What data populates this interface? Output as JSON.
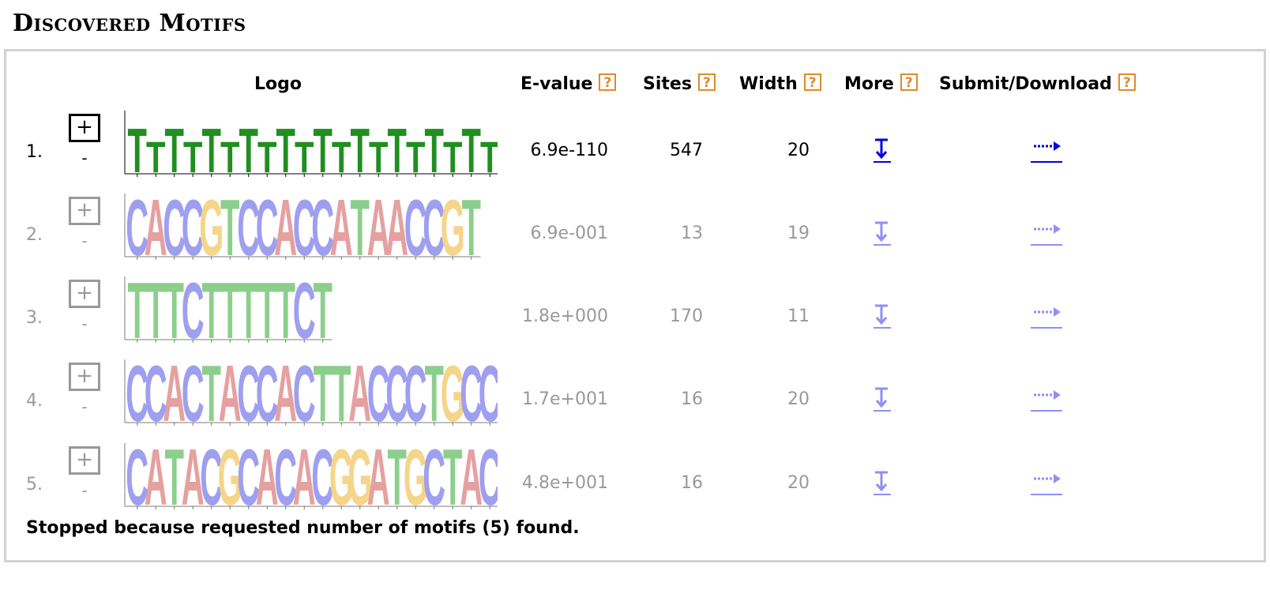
{
  "section_title": "Discovered Motifs",
  "headers": {
    "logo": "Logo",
    "evalue": "E-value",
    "sites": "Sites",
    "width": "Width",
    "more": "More",
    "submit": "Submit/Download",
    "help_glyph": "?"
  },
  "motifs": [
    {
      "index": "1.",
      "expand": "+",
      "collapse": "-",
      "evalue": "6.9e-110",
      "sites": "547",
      "width": "20",
      "active": true,
      "logo": "TTTTTTTTTTTTTTTTTTTT"
    },
    {
      "index": "2.",
      "expand": "+",
      "collapse": "-",
      "evalue": "6.9e-001",
      "sites": "13",
      "width": "19",
      "active": false,
      "logo": "CACCGTCCACCATAACCGT"
    },
    {
      "index": "3.",
      "expand": "+",
      "collapse": "-",
      "evalue": "1.8e+000",
      "sites": "170",
      "width": "11",
      "active": false,
      "logo": "TTTCTTTTTCT"
    },
    {
      "index": "4.",
      "expand": "+",
      "collapse": "-",
      "evalue": "1.7e+001",
      "sites": "16",
      "width": "20",
      "active": false,
      "logo": "CCACTACCACTTACCCTGCC"
    },
    {
      "index": "5.",
      "expand": "+",
      "collapse": "-",
      "evalue": "4.8e+001",
      "sites": "16",
      "width": "20",
      "active": false,
      "logo": "CATACGCACACGGATGCTAC"
    }
  ],
  "icons": {
    "more": "download-arrow-icon",
    "submit": "dotted-arrow-right-icon"
  },
  "colors": {
    "A": "#e5a0a0",
    "C": "#9f9ff0",
    "G": "#f5d58a",
    "T": "#8ccf8c",
    "T_active": "#1f8f1f",
    "C_active": "#1f1fd0",
    "link": "#0000e6",
    "link_faded": "#8f8ff5",
    "help": "#e08a2c"
  },
  "footer": "Stopped because requested number of motifs (5) found."
}
